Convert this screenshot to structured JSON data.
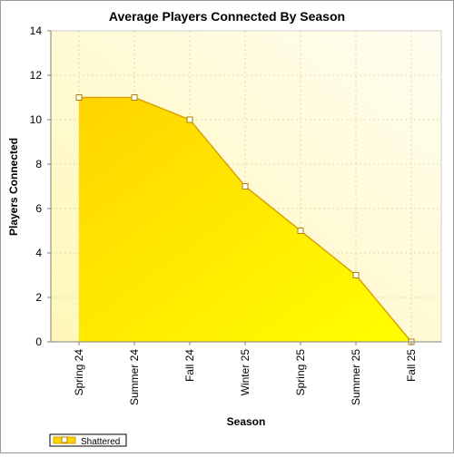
{
  "chart_data": {
    "type": "area",
    "title": "Average Players Connected By Season",
    "xlabel": "Season",
    "ylabel": "Players Connected",
    "categories": [
      "Spring 24",
      "Summer 24",
      "Fall 24",
      "Winter 25",
      "Spring 25",
      "Summer 25",
      "Fall 25"
    ],
    "series": [
      {
        "name": "Shattered",
        "values": [
          11,
          11,
          10,
          7,
          5,
          3,
          0
        ]
      }
    ],
    "ylim": [
      0,
      14
    ],
    "yticks": [
      "0",
      "2",
      "4",
      "6",
      "8",
      "10",
      "12",
      "14"
    ],
    "grid": true,
    "legend_position": "bottom-left",
    "colors": {
      "fill_top": "#ffd400",
      "fill_bottom": "#ffff00",
      "line": "#d9a400",
      "marker_fill": "#ffffff",
      "marker_stroke": "#b08000",
      "plot_bg_light": "#fffef0",
      "plot_bg_dark": "#fff7b8"
    }
  }
}
